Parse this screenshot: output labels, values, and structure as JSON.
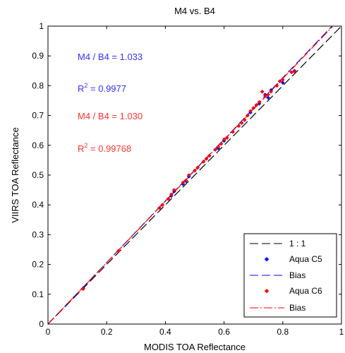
{
  "chart_data": {
    "type": "scatter",
    "title": "M4 vs. B4",
    "xlabel": "MODIS TOA Reflectance",
    "ylabel": "VIIRS TOA Reflectance",
    "xlim": [
      0,
      1
    ],
    "ylim": [
      0,
      1
    ],
    "xticks": [
      "0",
      "0.2",
      "0.4",
      "0.6",
      "0.8",
      "1"
    ],
    "yticks": [
      "0",
      "0.1",
      "0.2",
      "0.3",
      "0.4",
      "0.5",
      "0.6",
      "0.7",
      "0.8",
      "0.9",
      "1"
    ],
    "grid": false,
    "legend_position": "bottom-right",
    "annotations": [
      {
        "text": "M4 / B4 = 1.033",
        "color": "#3333ff"
      },
      {
        "text_main": "R",
        "sup": "2",
        "text_rest": " = 0.9977",
        "color": "#3333ff"
      },
      {
        "text": "M4 / B4 = 1.030",
        "color": "#ff3333"
      },
      {
        "text_main": "R",
        "sup": "2",
        "text_rest": " = 0.99768",
        "color": "#ff3333"
      }
    ],
    "series": [
      {
        "name": "1 : 1",
        "kind": "line",
        "style": "dashed",
        "color": "#000000",
        "slope": 1.0
      },
      {
        "name": "Aqua C5",
        "kind": "scatter",
        "color": "#0000ff",
        "marker": "diamond",
        "x": [
          0.12,
          0.24,
          0.38,
          0.39,
          0.41,
          0.42,
          0.43,
          0.46,
          0.47,
          0.48,
          0.5,
          0.51,
          0.53,
          0.54,
          0.55,
          0.57,
          0.58,
          0.59,
          0.6,
          0.61,
          0.63,
          0.65,
          0.66,
          0.67,
          0.68,
          0.69,
          0.7,
          0.71,
          0.72,
          0.73,
          0.74,
          0.75,
          0.76,
          0.78,
          0.79,
          0.8,
          0.83,
          0.84
        ],
        "y": [
          0.12,
          0.245,
          0.39,
          0.4,
          0.42,
          0.43,
          0.445,
          0.47,
          0.48,
          0.495,
          0.515,
          0.525,
          0.545,
          0.555,
          0.565,
          0.585,
          0.59,
          0.605,
          0.615,
          0.625,
          0.645,
          0.665,
          0.675,
          0.685,
          0.7,
          0.71,
          0.725,
          0.735,
          0.74,
          0.78,
          0.77,
          0.76,
          0.785,
          0.8,
          0.815,
          0.81,
          0.845,
          0.85
        ]
      },
      {
        "name": "Bias",
        "kind": "line",
        "style": "dashed",
        "color": "#0000ff",
        "slope": 1.033
      },
      {
        "name": "Aqua C6",
        "kind": "scatter",
        "color": "#ff0000",
        "marker": "diamond",
        "x": [
          0.12,
          0.24,
          0.38,
          0.39,
          0.41,
          0.42,
          0.43,
          0.46,
          0.47,
          0.48,
          0.5,
          0.51,
          0.53,
          0.54,
          0.55,
          0.57,
          0.58,
          0.59,
          0.6,
          0.61,
          0.63,
          0.65,
          0.66,
          0.67,
          0.68,
          0.69,
          0.7,
          0.71,
          0.72,
          0.73,
          0.74,
          0.75,
          0.76,
          0.78,
          0.79,
          0.8,
          0.83,
          0.84
        ],
        "y": [
          0.118,
          0.245,
          0.39,
          0.4,
          0.42,
          0.435,
          0.45,
          0.475,
          0.482,
          0.5,
          0.515,
          0.525,
          0.545,
          0.555,
          0.565,
          0.585,
          0.595,
          0.605,
          0.62,
          0.625,
          0.645,
          0.665,
          0.675,
          0.685,
          0.7,
          0.715,
          0.725,
          0.735,
          0.745,
          0.78,
          0.765,
          0.77,
          0.78,
          0.8,
          0.815,
          0.82,
          0.845,
          0.848
        ]
      },
      {
        "name": "Bias",
        "kind": "line",
        "style": "dashdot",
        "color": "#ff0000",
        "slope": 1.03
      }
    ]
  }
}
